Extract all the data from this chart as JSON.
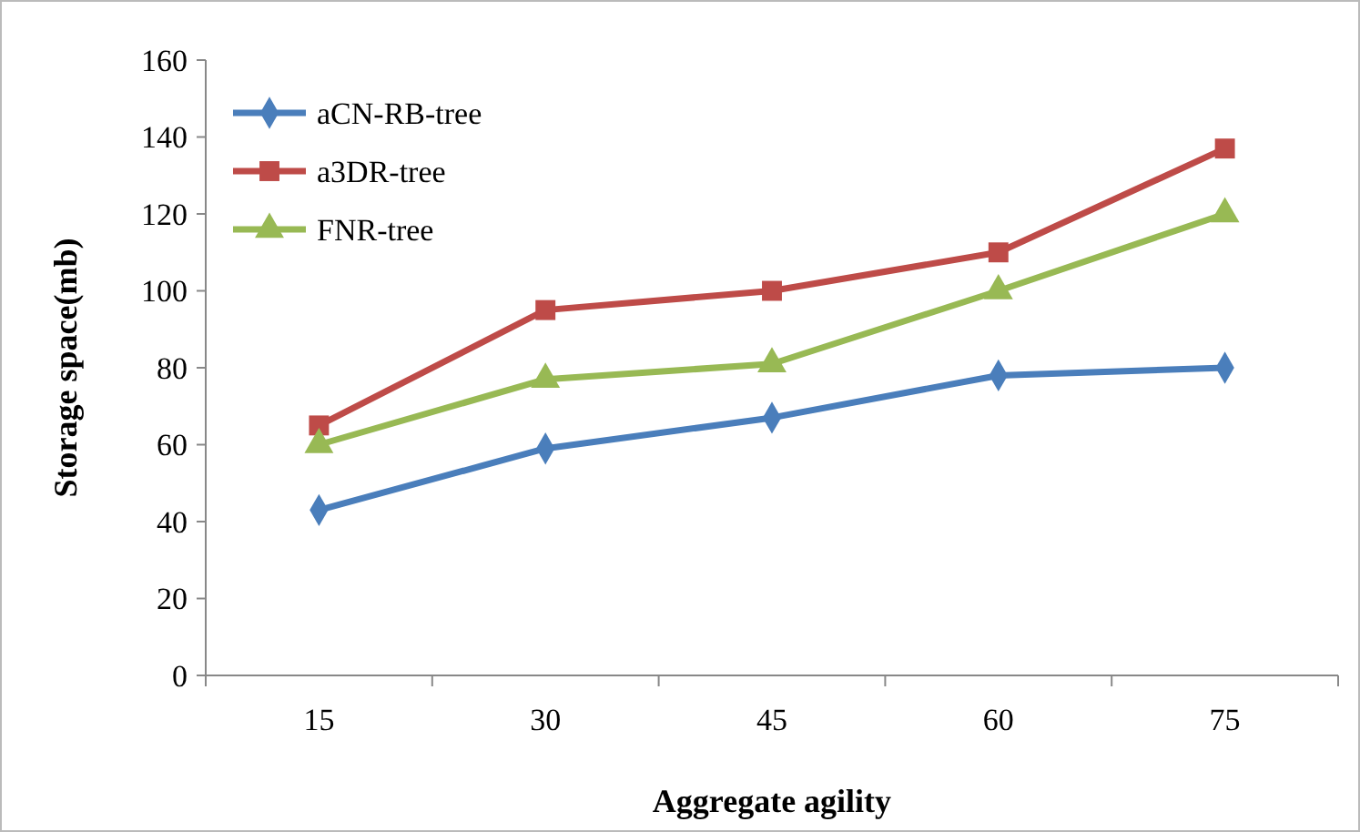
{
  "chart_data": {
    "type": "line",
    "xlabel": "Aggregate agility",
    "ylabel": "Storage space(mb)",
    "categories": [
      "15",
      "30",
      "45",
      "60",
      "75"
    ],
    "series": [
      {
        "name": "aCN-RB-tree",
        "color": "#4a7ebb",
        "marker": "diamond",
        "values": [
          43,
          59,
          67,
          78,
          80
        ]
      },
      {
        "name": "a3DR-tree",
        "color": "#be4b48",
        "marker": "square",
        "values": [
          65,
          95,
          100,
          110,
          137
        ]
      },
      {
        "name": "FNR-tree",
        "color": "#98b954",
        "marker": "triangle",
        "values": [
          60,
          77,
          81,
          100,
          120
        ]
      }
    ],
    "ylim": [
      0,
      160
    ],
    "yticks": [
      0,
      20,
      40,
      60,
      80,
      100,
      120,
      140,
      160
    ],
    "grid": false,
    "legend": "top left"
  }
}
